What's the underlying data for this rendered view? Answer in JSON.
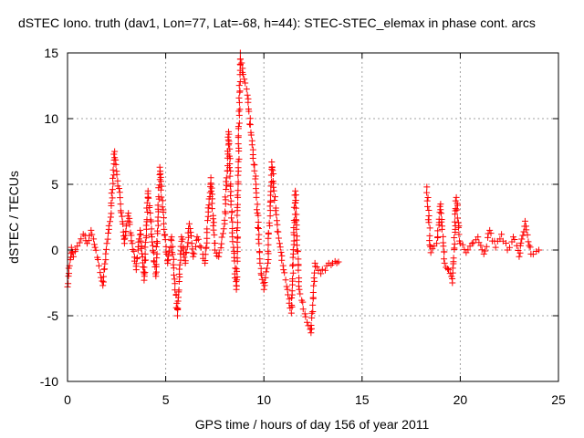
{
  "chart_data": {
    "type": "scatter",
    "title": "dSTEC Iono. truth (dav1, Lon=77, Lat=-68, h=44): STEC-STEC_elemax in phase cont. arcs",
    "xlabel": "GPS time / hours of day 156 of year 2011",
    "ylabel": "dSTEC  / TECUs",
    "xlim": [
      0,
      25
    ],
    "ylim": [
      -10,
      15
    ],
    "xticks": [
      0,
      5,
      10,
      15,
      20,
      25
    ],
    "yticks": [
      -10,
      -5,
      0,
      5,
      10,
      15
    ],
    "grid": true,
    "marker": "+",
    "series": [
      {
        "name": "dSTEC",
        "color": "#ff0000",
        "anchors": [
          [
            0.0,
            -2.8
          ],
          [
            0.1,
            -1.2
          ],
          [
            0.2,
            0.2
          ],
          [
            0.3,
            -0.5
          ],
          [
            0.5,
            0.3
          ],
          [
            0.8,
            1.2
          ],
          [
            1.0,
            0.5
          ],
          [
            1.2,
            1.5
          ],
          [
            1.4,
            0.2
          ],
          [
            1.6,
            -1.2
          ],
          [
            1.8,
            -2.7
          ],
          [
            2.0,
            0.5
          ],
          [
            2.2,
            2.5
          ],
          [
            2.4,
            7.5
          ],
          [
            2.5,
            6.0
          ],
          [
            2.7,
            3.5
          ],
          [
            2.9,
            0.5
          ],
          [
            3.1,
            2.8
          ],
          [
            3.3,
            0.5
          ],
          [
            3.5,
            -1.5
          ],
          [
            3.7,
            1.5
          ],
          [
            3.9,
            -2.3
          ],
          [
            4.1,
            4.5
          ],
          [
            4.3,
            1.0
          ],
          [
            4.5,
            -2.0
          ],
          [
            4.7,
            6.3
          ],
          [
            4.9,
            2.0
          ],
          [
            5.1,
            -1.0
          ],
          [
            5.3,
            1.0
          ],
          [
            5.6,
            -5.0
          ],
          [
            5.8,
            1.0
          ],
          [
            6.0,
            -1.0
          ],
          [
            6.2,
            2.0
          ],
          [
            6.4,
            -0.5
          ],
          [
            6.6,
            1.0
          ],
          [
            6.8,
            0.2
          ],
          [
            7.0,
            -1.0
          ],
          [
            7.3,
            5.5
          ],
          [
            7.5,
            0.0
          ],
          [
            7.7,
            -0.5
          ],
          [
            8.0,
            2.0
          ],
          [
            8.2,
            9.0
          ],
          [
            8.4,
            1.0
          ],
          [
            8.6,
            -3.0
          ],
          [
            8.8,
            15.0
          ],
          [
            9.0,
            13.0
          ],
          [
            9.2,
            11.5
          ],
          [
            9.4,
            8.0
          ],
          [
            9.6,
            5.0
          ],
          [
            9.8,
            -1.0
          ],
          [
            10.0,
            -3.0
          ],
          [
            10.2,
            -1.0
          ],
          [
            10.4,
            6.7
          ],
          [
            10.6,
            3.0
          ],
          [
            10.8,
            0.5
          ],
          [
            11.0,
            -1.5
          ],
          [
            11.2,
            -3.0
          ],
          [
            11.4,
            -4.8
          ],
          [
            11.6,
            4.5
          ],
          [
            11.8,
            -3.0
          ],
          [
            12.0,
            -4.5
          ],
          [
            12.2,
            -5.5
          ],
          [
            12.4,
            -6.3
          ],
          [
            12.6,
            -1.0
          ],
          [
            12.9,
            -1.8
          ],
          [
            13.2,
            -1.2
          ],
          [
            13.5,
            -1.0
          ],
          [
            13.8,
            -0.9
          ],
          [
            18.3,
            4.8
          ],
          [
            18.5,
            -0.2
          ],
          [
            18.8,
            0.5
          ],
          [
            19.0,
            3.5
          ],
          [
            19.2,
            -1.0
          ],
          [
            19.4,
            -1.5
          ],
          [
            19.6,
            -2.5
          ],
          [
            19.8,
            4.0
          ],
          [
            20.0,
            0.5
          ],
          [
            20.3,
            -0.2
          ],
          [
            20.6,
            0.5
          ],
          [
            20.9,
            1.0
          ],
          [
            21.2,
            -0.3
          ],
          [
            21.5,
            1.5
          ],
          [
            21.8,
            0.2
          ],
          [
            22.1,
            1.2
          ],
          [
            22.4,
            0.0
          ],
          [
            22.7,
            1.0
          ],
          [
            23.0,
            -0.5
          ],
          [
            23.3,
            2.2
          ],
          [
            23.6,
            -0.3
          ],
          [
            24.0,
            0.0
          ]
        ]
      }
    ]
  }
}
